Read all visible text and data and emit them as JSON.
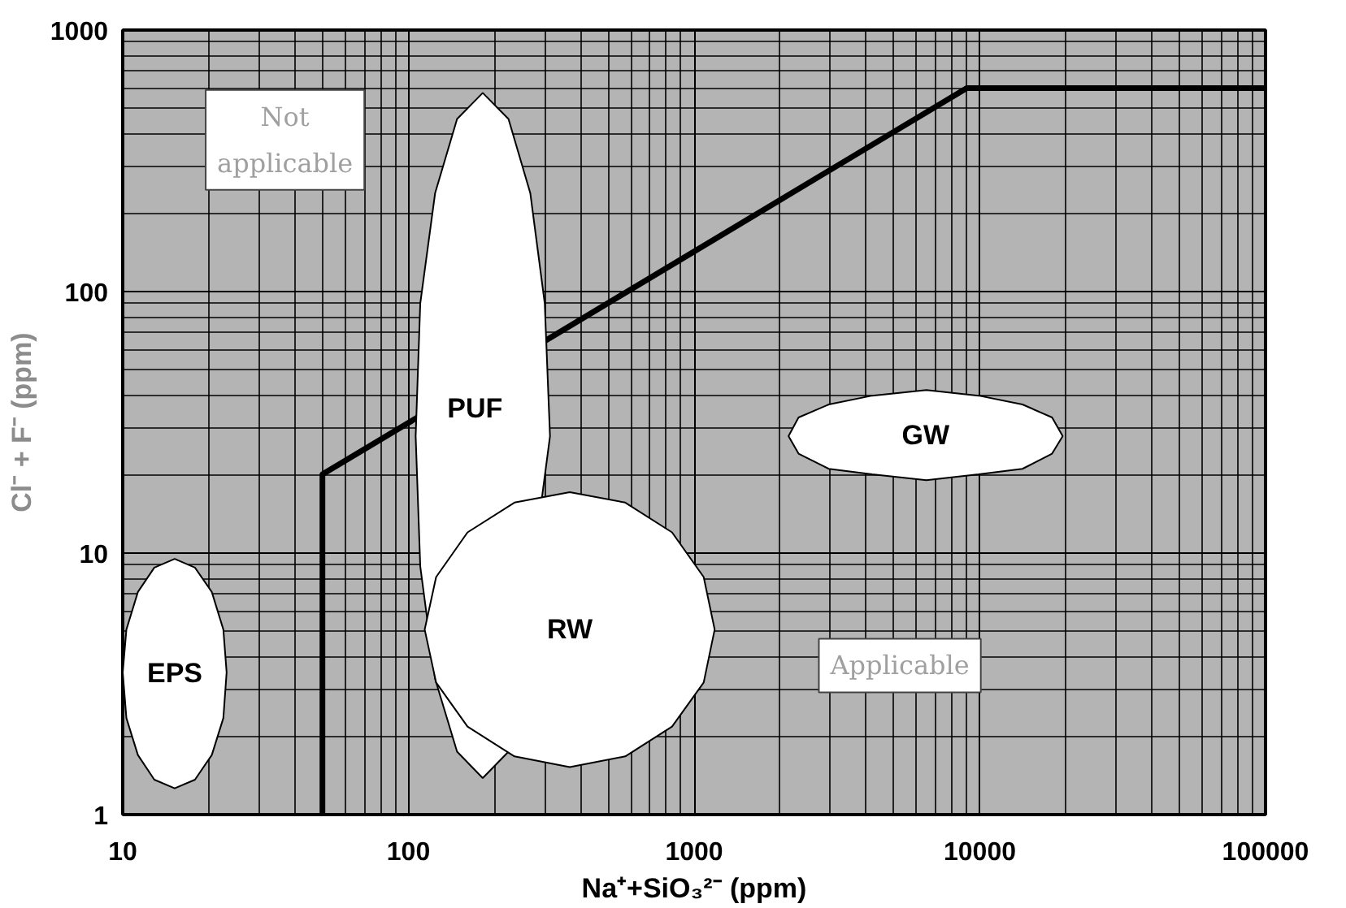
{
  "chart_data": {
    "type": "line",
    "xlabel": "Na⁺+SiO₃²⁻ (ppm)",
    "ylabel": "Cl⁻ + F⁻ (ppm)",
    "log": "xy",
    "grid": true,
    "xlim": [
      10,
      100000
    ],
    "xticks": [
      10,
      100,
      1000,
      10000,
      100000
    ],
    "ylim": [
      1,
      1000
    ],
    "yticks": [
      1,
      10,
      100,
      1000
    ],
    "x": [
      50,
      50,
      9000,
      100000
    ],
    "series": [
      {
        "color": "#000000",
        "values": [
          1,
          20,
          600,
          600
        ]
      },
      {
        "type": "area",
        "name": "PUF",
        "color": "#ffffff",
        "x": [
          313,
          300,
          267,
          224,
          182,
          148,
          124,
          110,
          106,
          110,
          124,
          148,
          182,
          224
        ],
        "values": [
          28,
          90,
          238,
          457,
          575,
          457,
          238,
          90,
          28,
          8.9,
          3.3,
          1.74,
          1.38,
          1.74
        ]
      },
      {
        "type": "area",
        "name": "RW",
        "color": "#ffffff",
        "x": [
          1180,
          1080,
          837,
          574,
          367,
          235,
          161,
          125,
          114,
          125,
          161,
          235,
          367,
          574,
          837,
          1080
        ],
        "values": [
          5.1,
          8.1,
          12.0,
          15.6,
          17.1,
          15.6,
          12.0,
          8.1,
          5.1,
          3.2,
          2.17,
          1.67,
          1.52,
          1.67,
          2.17,
          3.2
        ]
      },
      {
        "type": "area",
        "name": "EPS",
        "color": "#ffffff",
        "x": [
          23.1,
          22.5,
          20.5,
          17.9,
          15.2,
          12.9,
          11.3,
          10.3,
          10.0,
          10.3,
          11.3,
          12.9,
          15.2,
          17.9,
          20.5,
          22.5
        ],
        "values": [
          3.5,
          5.1,
          7.1,
          8.8,
          9.5,
          8.8,
          7.1,
          5.1,
          3.5,
          2.34,
          1.69,
          1.36,
          1.26,
          1.36,
          1.69,
          2.34
        ]
      },
      {
        "type": "area",
        "name": "GW",
        "color": "#ffffff",
        "x": [
          19500,
          17900,
          14100,
          9900,
          6500,
          4200,
          2960,
          2320,
          2140,
          2320,
          2960,
          4200,
          6500,
          9900,
          14100,
          17900
        ],
        "values": [
          28,
          33,
          37,
          40,
          42,
          40,
          37,
          33,
          28,
          24,
          21,
          20,
          19,
          20,
          21,
          24
        ]
      }
    ],
    "annotations": [
      "Not\napplicable",
      "Applicable"
    ]
  }
}
